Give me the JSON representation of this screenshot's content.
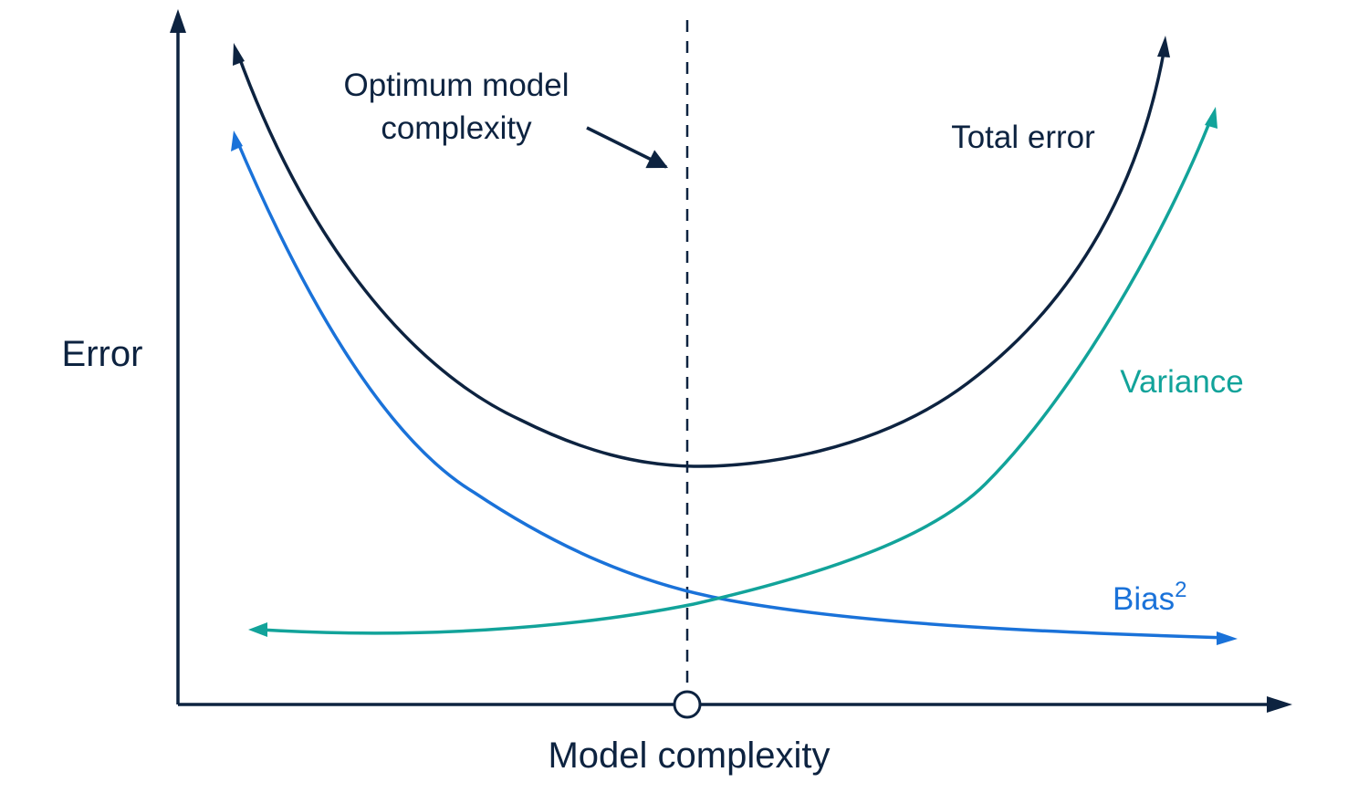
{
  "colors": {
    "axis": "#0d2340",
    "total_error": "#0d2340",
    "bias": "#1a72d9",
    "variance": "#12a39a",
    "background": "#ffffff"
  },
  "labels": {
    "y_axis": "Error",
    "x_axis": "Model complexity",
    "optimum_line1": "Optimum model",
    "optimum_line2": "complexity",
    "total_error": "Total error",
    "variance": "Variance",
    "bias": "Bias",
    "bias_superscript": "2"
  },
  "curves": [
    "total-error",
    "variance",
    "bias-squared"
  ],
  "markers": {
    "optimum_point": "circle-marker",
    "optimum_line": "dashed-line"
  }
}
